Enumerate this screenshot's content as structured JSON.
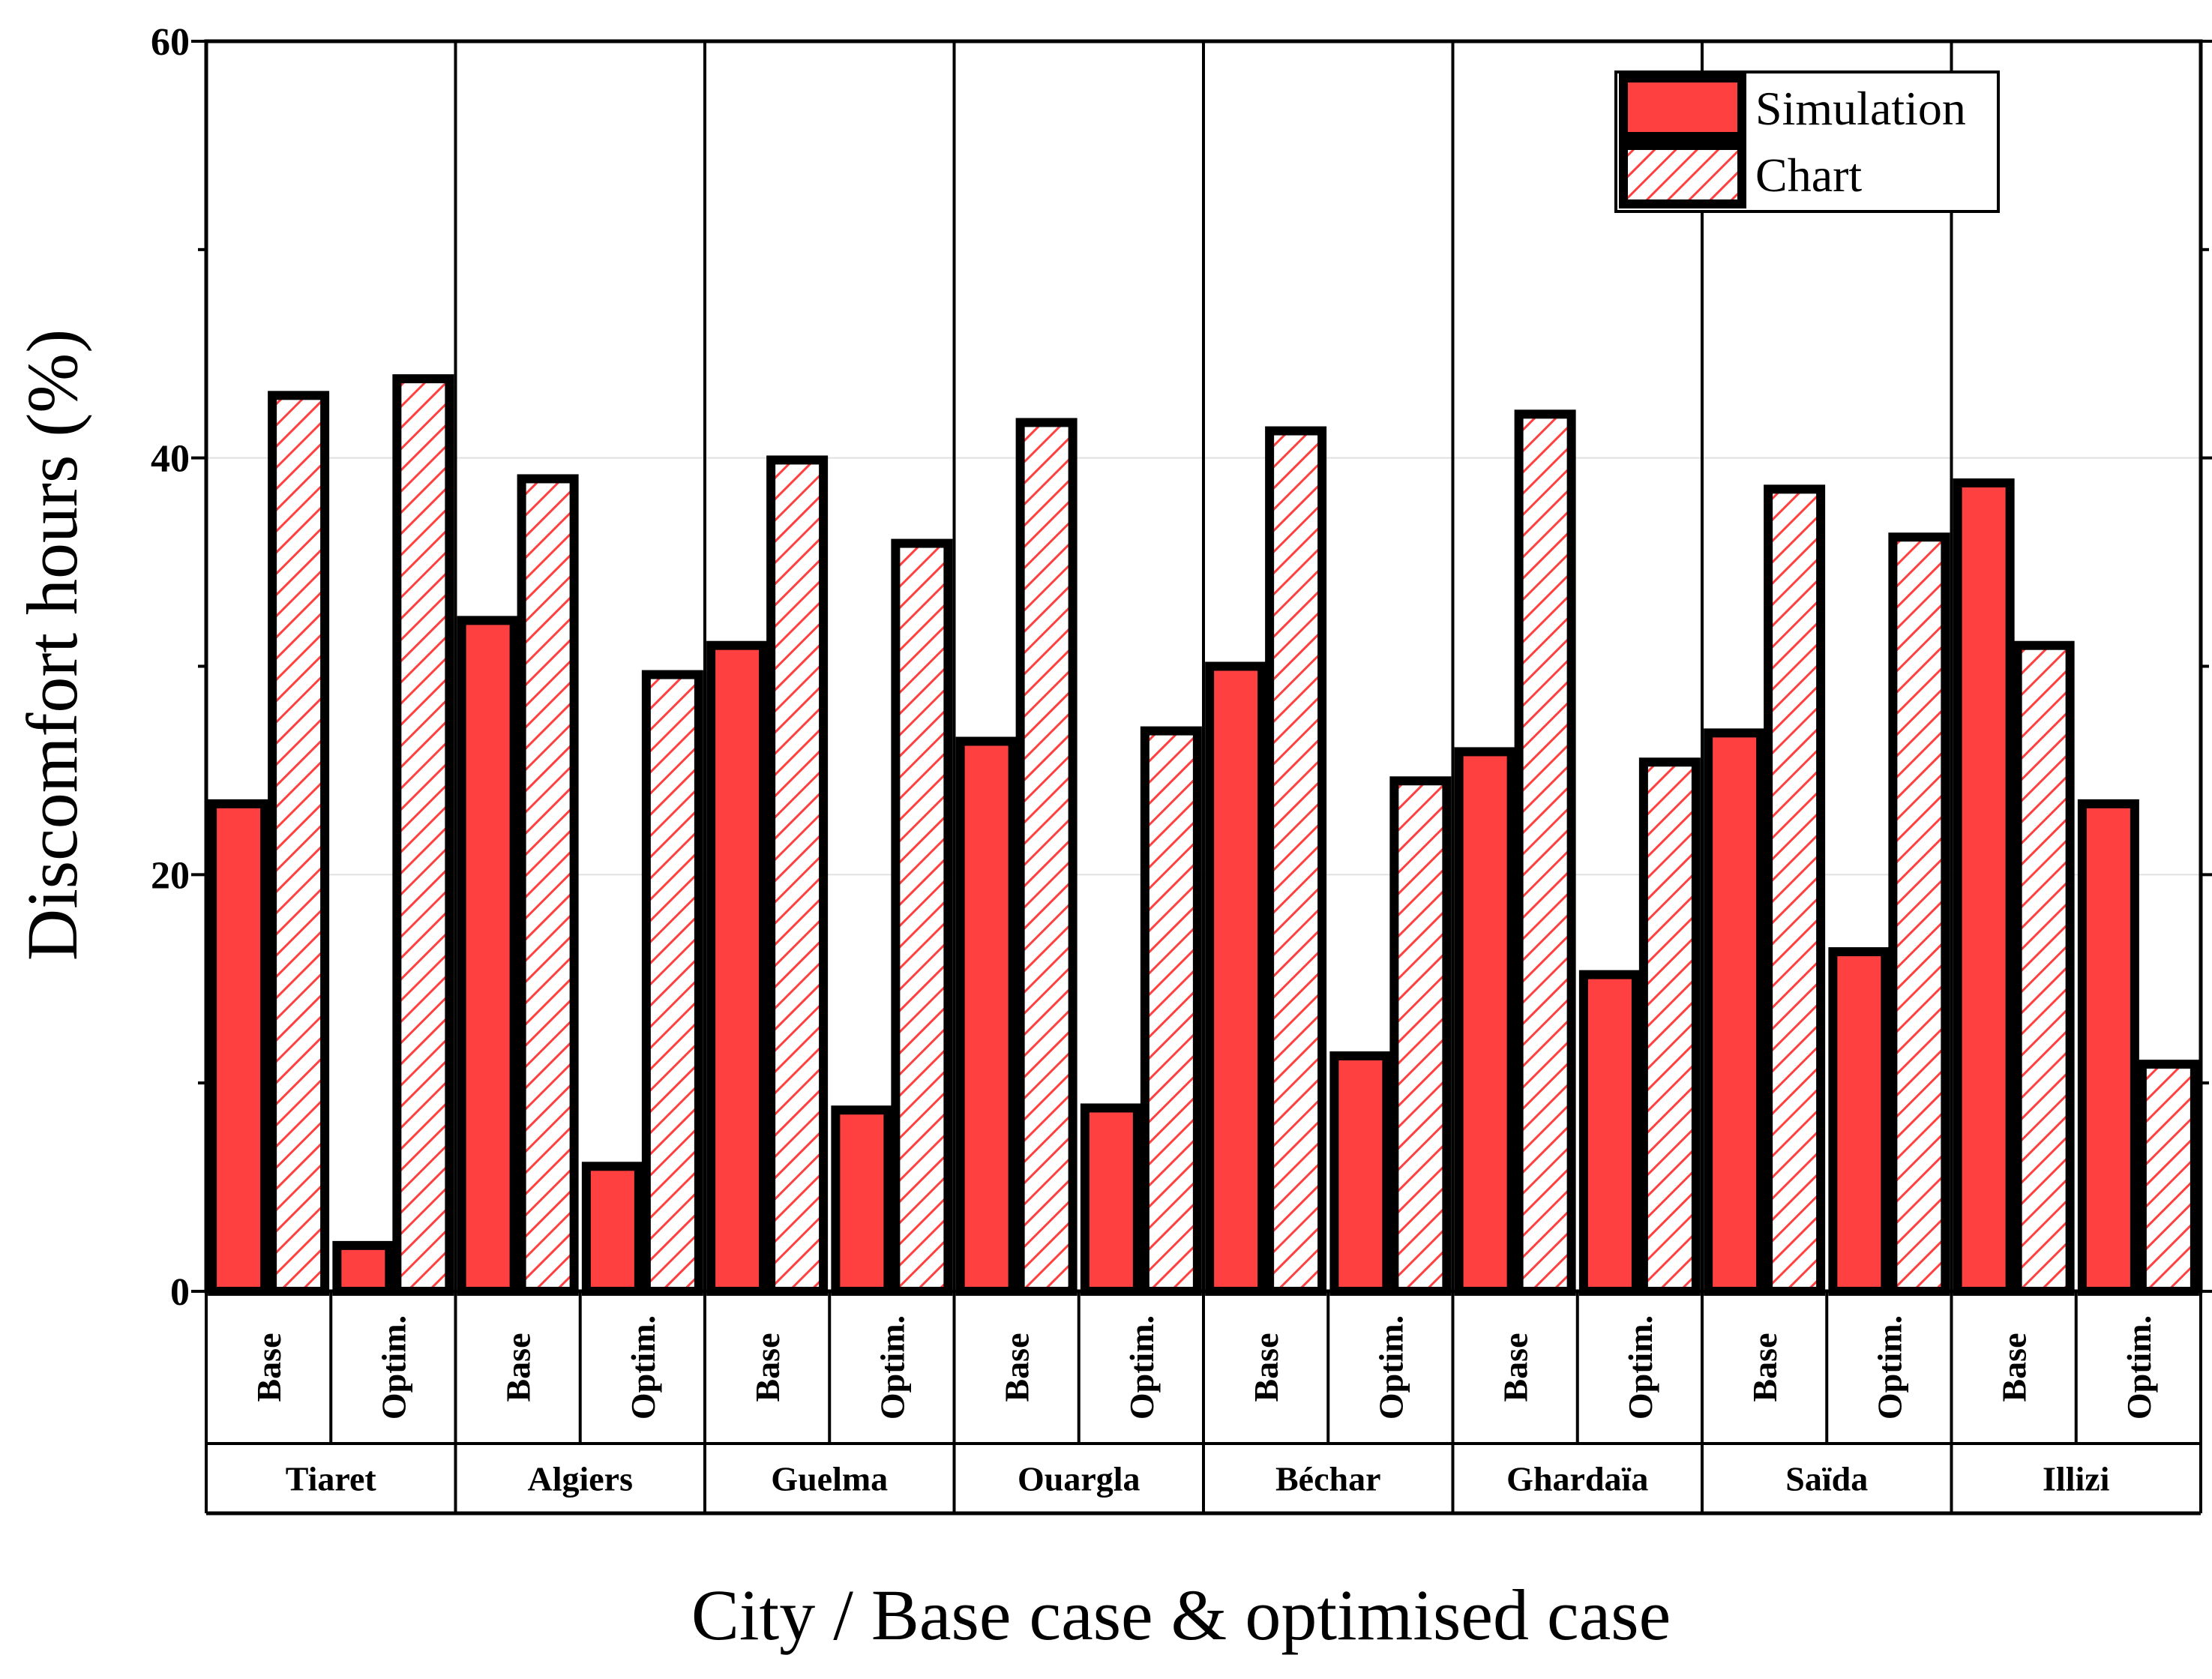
{
  "chart_data": {
    "type": "bar",
    "title": "",
    "xlabel": "City / Base case & optimised case",
    "ylabel": "Discomfort hours (%)",
    "ylim": [
      0,
      60
    ],
    "yticks": [
      "0",
      "20",
      "40",
      "60"
    ],
    "grid": true,
    "legend_position": "top-right",
    "groups": [
      {
        "city": "Tiaret",
        "cases": [
          "Base",
          "Optim."
        ]
      },
      {
        "city": "Algiers",
        "cases": [
          "Base",
          "Optim."
        ]
      },
      {
        "city": "Guelma",
        "cases": [
          "Base",
          "Optim."
        ]
      },
      {
        "city": "Ouargla",
        "cases": [
          "Base",
          "Optim."
        ]
      },
      {
        "city": "Béchar",
        "cases": [
          "Base",
          "Optim."
        ]
      },
      {
        "city": "Ghardaïa",
        "cases": [
          "Base",
          "Optim."
        ]
      },
      {
        "city": "Saïda",
        "cases": [
          "Base",
          "Optim."
        ]
      },
      {
        "city": "Illizi",
        "cases": [
          "Base",
          "Optim."
        ]
      }
    ],
    "categories": [
      "Tiaret Base",
      "Tiaret Optim.",
      "Algiers Base",
      "Algiers Optim.",
      "Guelma Base",
      "Guelma Optim.",
      "Ouargla Base",
      "Ouargla Optim.",
      "Béchar Base",
      "Béchar Optim.",
      "Ghardaïa Base",
      "Ghardaïa Optim.",
      "Saïda Base",
      "Saïda Optim.",
      "Illizi Base",
      "Illizi Optim."
    ],
    "series": [
      {
        "name": "Simulation",
        "color": "#ff4040",
        "pattern": "solid",
        "values": [
          23.4,
          2.2,
          32.2,
          6.0,
          31.0,
          8.7,
          26.4,
          8.8,
          30.0,
          11.3,
          25.9,
          15.2,
          26.8,
          16.3,
          38.8,
          23.4
        ]
      },
      {
        "name": "Chart",
        "color": "#ff4040",
        "pattern": "hatched",
        "values": [
          43.0,
          43.8,
          39.0,
          29.6,
          39.9,
          35.9,
          41.7,
          26.9,
          41.3,
          24.5,
          42.1,
          25.4,
          38.5,
          36.2,
          31.0,
          10.9
        ]
      }
    ]
  }
}
